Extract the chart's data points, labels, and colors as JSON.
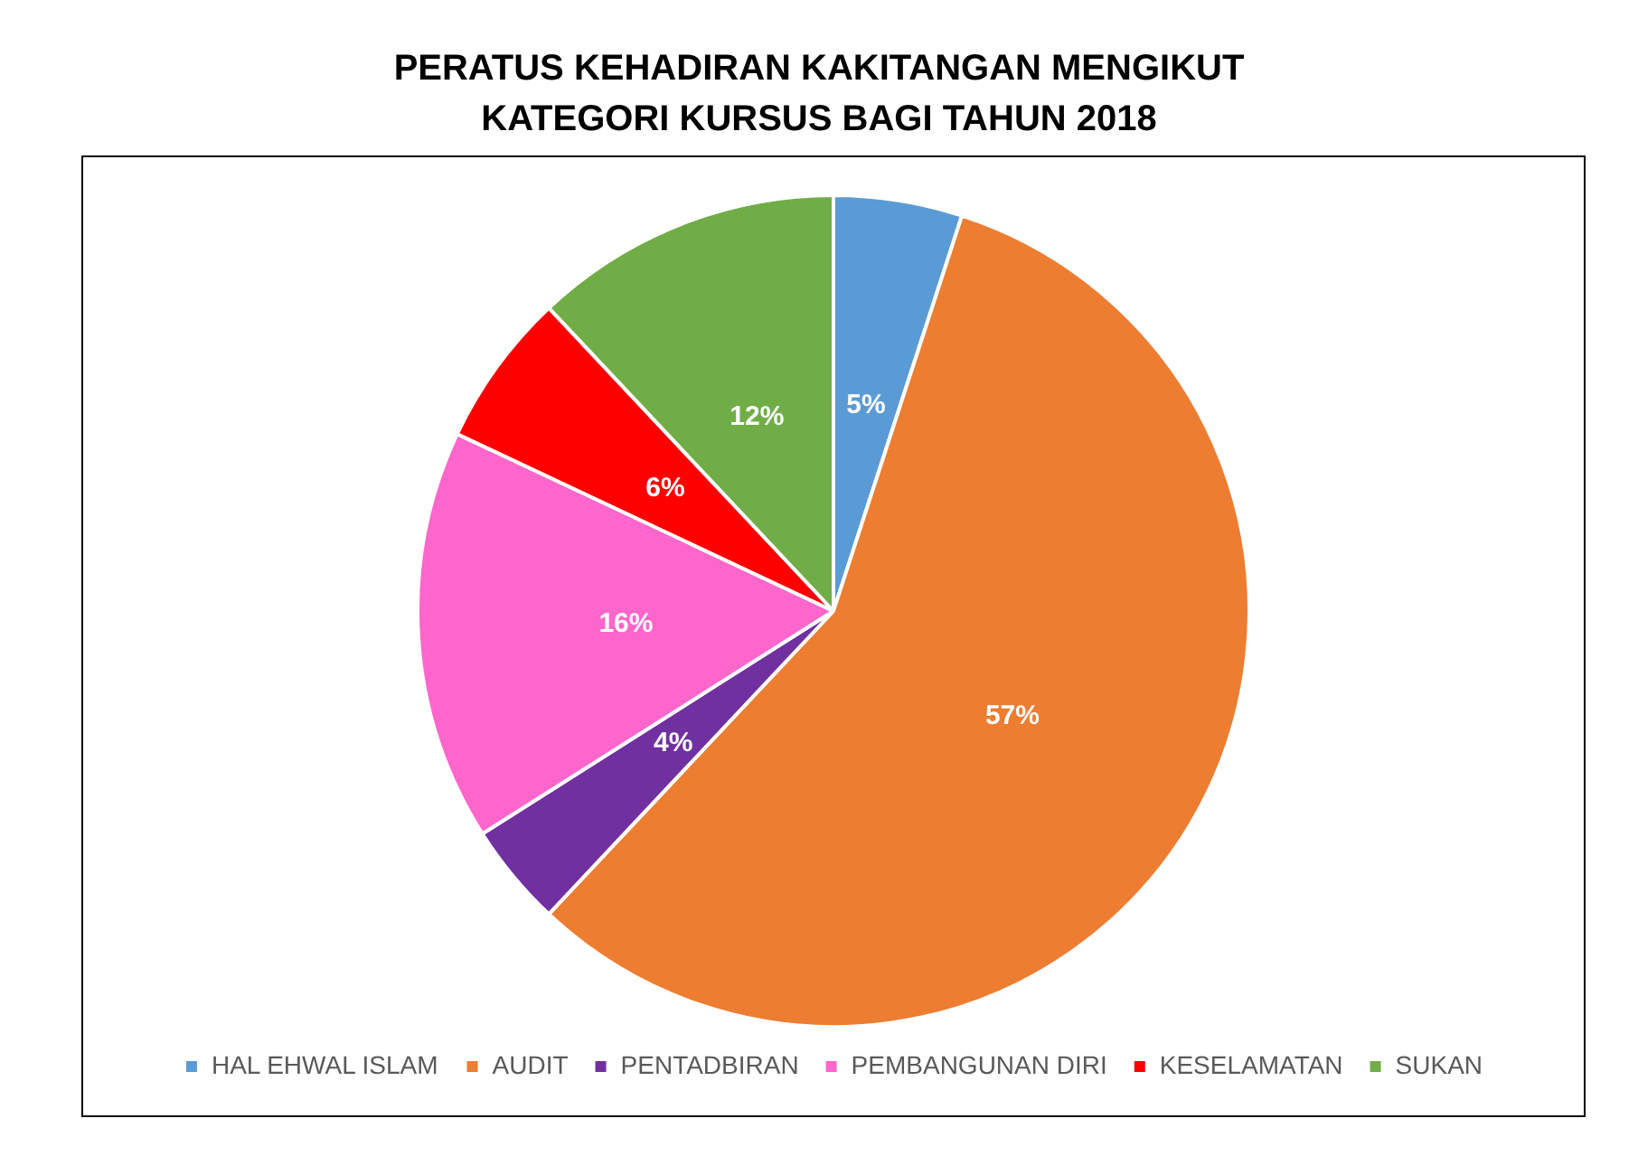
{
  "chart_data": {
    "type": "pie",
    "title": "PERATUS KEHADIRAN KAKITANGAN MENGIKUT\nKATEGORI KURSUS BAGI TAHUN 2018",
    "categories": [
      "HAL EHWAL ISLAM",
      "AUDIT",
      "PENTADBIRAN",
      "PEMBANGUNAN DIRI",
      "KESELAMATAN",
      "SUKAN"
    ],
    "values": [
      5,
      57,
      4,
      16,
      6,
      12
    ],
    "colors": [
      "#5b9bd5",
      "#ed7d31",
      "#7030a0",
      "#ff66cc",
      "#ff0000",
      "#70ad47"
    ],
    "value_labels": [
      "5%",
      "57%",
      "4%",
      "16%",
      "6%",
      "12%"
    ],
    "legend": "bottom"
  }
}
